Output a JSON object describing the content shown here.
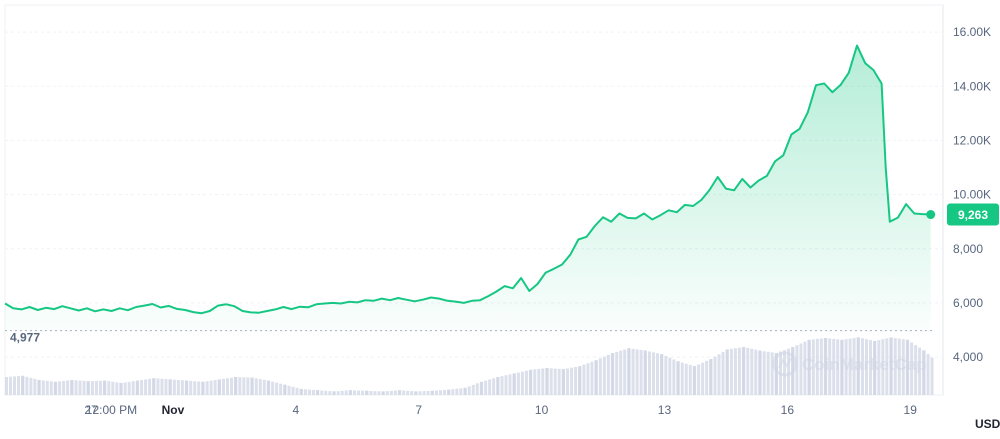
{
  "chart_data": {
    "type": "area",
    "ylim": [
      2600,
      17000
    ],
    "y_ticks": [
      {
        "value": 16000,
        "label": "16.00K"
      },
      {
        "value": 14000,
        "label": "14.00K"
      },
      {
        "value": 12000,
        "label": "12.00K"
      },
      {
        "value": 10000,
        "label": "10.00K"
      },
      {
        "value": 8000,
        "label": "8,000"
      },
      {
        "value": 6000,
        "label": "6,000"
      },
      {
        "value": 4000,
        "label": "4,000"
      }
    ],
    "x_ticks": [
      {
        "value": 27.0,
        "label": "27",
        "bold": false
      },
      {
        "value": 27.5,
        "label": "12:00 PM",
        "bold": false
      },
      {
        "value": 29.0,
        "label": "Nov",
        "bold": true
      },
      {
        "value": 32.0,
        "label": "4",
        "bold": false
      },
      {
        "value": 35.0,
        "label": "7",
        "bold": false
      },
      {
        "value": 38.0,
        "label": "10",
        "bold": false
      },
      {
        "value": 41.0,
        "label": "13",
        "bold": false
      },
      {
        "value": 44.0,
        "label": "16",
        "bold": false
      },
      {
        "value": 47.0,
        "label": "19",
        "bold": false
      }
    ],
    "xlim": [
      24.9,
      47.8
    ],
    "currency_label": "USD",
    "current_value_label": "9,263",
    "baseline_value": 4977,
    "baseline_label": "4,977",
    "watermark": "CoinMarketCap",
    "colors": {
      "line": "#16c784",
      "fill": "#16c784",
      "grid": "#eff2f5",
      "text": "#58667e",
      "volume": "#cfd6e4"
    },
    "series": [
      {
        "values": [
          [
            24.9,
            5980
          ],
          [
            25.1,
            5800
          ],
          [
            25.3,
            5760
          ],
          [
            25.5,
            5850
          ],
          [
            25.7,
            5740
          ],
          [
            25.9,
            5820
          ],
          [
            26.1,
            5770
          ],
          [
            26.3,
            5880
          ],
          [
            26.5,
            5800
          ],
          [
            26.7,
            5720
          ],
          [
            26.9,
            5800
          ],
          [
            27.1,
            5690
          ],
          [
            27.3,
            5760
          ],
          [
            27.5,
            5700
          ],
          [
            27.7,
            5800
          ],
          [
            27.9,
            5730
          ],
          [
            28.1,
            5850
          ],
          [
            28.3,
            5900
          ],
          [
            28.5,
            5960
          ],
          [
            28.7,
            5830
          ],
          [
            28.9,
            5890
          ],
          [
            29.1,
            5780
          ],
          [
            29.3,
            5740
          ],
          [
            29.5,
            5660
          ],
          [
            29.7,
            5620
          ],
          [
            29.9,
            5700
          ],
          [
            30.1,
            5900
          ],
          [
            30.3,
            5950
          ],
          [
            30.5,
            5880
          ],
          [
            30.7,
            5700
          ],
          [
            30.9,
            5650
          ],
          [
            31.1,
            5640
          ],
          [
            31.3,
            5700
          ],
          [
            31.5,
            5760
          ],
          [
            31.7,
            5850
          ],
          [
            31.9,
            5770
          ],
          [
            32.1,
            5860
          ],
          [
            32.3,
            5840
          ],
          [
            32.5,
            5950
          ],
          [
            32.7,
            5980
          ],
          [
            32.9,
            6000
          ],
          [
            33.1,
            5980
          ],
          [
            33.3,
            6040
          ],
          [
            33.5,
            6020
          ],
          [
            33.7,
            6100
          ],
          [
            33.9,
            6080
          ],
          [
            34.1,
            6160
          ],
          [
            34.3,
            6100
          ],
          [
            34.5,
            6180
          ],
          [
            34.7,
            6120
          ],
          [
            34.9,
            6060
          ],
          [
            35.1,
            6120
          ],
          [
            35.3,
            6200
          ],
          [
            35.5,
            6160
          ],
          [
            35.7,
            6080
          ],
          [
            35.9,
            6050
          ],
          [
            36.1,
            6000
          ],
          [
            36.3,
            6080
          ],
          [
            36.5,
            6100
          ],
          [
            36.7,
            6250
          ],
          [
            36.9,
            6420
          ],
          [
            37.1,
            6620
          ],
          [
            37.3,
            6540
          ],
          [
            37.5,
            6920
          ],
          [
            37.7,
            6440
          ],
          [
            37.9,
            6700
          ],
          [
            38.1,
            7120
          ],
          [
            38.3,
            7260
          ],
          [
            38.5,
            7420
          ],
          [
            38.7,
            7780
          ],
          [
            38.9,
            8340
          ],
          [
            39.1,
            8440
          ],
          [
            39.3,
            8840
          ],
          [
            39.5,
            9160
          ],
          [
            39.7,
            9000
          ],
          [
            39.9,
            9300
          ],
          [
            40.1,
            9140
          ],
          [
            40.3,
            9120
          ],
          [
            40.5,
            9300
          ],
          [
            40.7,
            9080
          ],
          [
            40.9,
            9240
          ],
          [
            41.1,
            9420
          ],
          [
            41.3,
            9350
          ],
          [
            41.5,
            9620
          ],
          [
            41.7,
            9580
          ],
          [
            41.9,
            9800
          ],
          [
            42.1,
            10170
          ],
          [
            42.3,
            10650
          ],
          [
            42.5,
            10220
          ],
          [
            42.7,
            10160
          ],
          [
            42.9,
            10580
          ],
          [
            43.1,
            10260
          ],
          [
            43.3,
            10520
          ],
          [
            43.5,
            10690
          ],
          [
            43.7,
            11230
          ],
          [
            43.9,
            11450
          ],
          [
            44.1,
            12220
          ],
          [
            44.3,
            12430
          ],
          [
            44.5,
            13040
          ],
          [
            44.7,
            14040
          ],
          [
            44.9,
            14100
          ],
          [
            45.1,
            13780
          ],
          [
            45.3,
            14050
          ],
          [
            45.5,
            14500
          ],
          [
            45.7,
            15500
          ],
          [
            45.9,
            14850
          ],
          [
            46.1,
            14600
          ],
          [
            46.3,
            14100
          ],
          [
            46.4,
            11000
          ],
          [
            46.5,
            9000
          ],
          [
            46.7,
            9150
          ],
          [
            46.9,
            9650
          ],
          [
            47.1,
            9300
          ],
          [
            47.3,
            9280
          ],
          [
            47.5,
            9263
          ]
        ]
      }
    ],
    "volume": [
      [
        24.9,
        0.3
      ],
      [
        25.3,
        0.32
      ],
      [
        25.7,
        0.25
      ],
      [
        26.1,
        0.22
      ],
      [
        26.5,
        0.25
      ],
      [
        26.9,
        0.23
      ],
      [
        27.3,
        0.24
      ],
      [
        27.7,
        0.2
      ],
      [
        28.1,
        0.24
      ],
      [
        28.5,
        0.28
      ],
      [
        28.9,
        0.26
      ],
      [
        29.3,
        0.24
      ],
      [
        29.7,
        0.22
      ],
      [
        30.1,
        0.26
      ],
      [
        30.5,
        0.3
      ],
      [
        30.9,
        0.29
      ],
      [
        31.3,
        0.24
      ],
      [
        31.7,
        0.17
      ],
      [
        32.1,
        0.1
      ],
      [
        32.5,
        0.08
      ],
      [
        32.9,
        0.06
      ],
      [
        33.3,
        0.08
      ],
      [
        33.7,
        0.07
      ],
      [
        34.1,
        0.06
      ],
      [
        34.5,
        0.08
      ],
      [
        34.9,
        0.06
      ],
      [
        35.3,
        0.07
      ],
      [
        35.7,
        0.09
      ],
      [
        36.1,
        0.12
      ],
      [
        36.5,
        0.22
      ],
      [
        36.9,
        0.3
      ],
      [
        37.3,
        0.36
      ],
      [
        37.7,
        0.42
      ],
      [
        38.1,
        0.45
      ],
      [
        38.5,
        0.43
      ],
      [
        38.9,
        0.48
      ],
      [
        39.3,
        0.58
      ],
      [
        39.7,
        0.7
      ],
      [
        40.1,
        0.78
      ],
      [
        40.5,
        0.74
      ],
      [
        40.9,
        0.68
      ],
      [
        41.3,
        0.56
      ],
      [
        41.7,
        0.48
      ],
      [
        42.1,
        0.6
      ],
      [
        42.5,
        0.76
      ],
      [
        42.9,
        0.8
      ],
      [
        43.3,
        0.74
      ],
      [
        43.7,
        0.7
      ],
      [
        44.1,
        0.8
      ],
      [
        44.5,
        0.92
      ],
      [
        44.9,
        0.95
      ],
      [
        45.3,
        0.92
      ],
      [
        45.7,
        0.96
      ],
      [
        46.1,
        0.9
      ],
      [
        46.5,
        0.96
      ],
      [
        46.9,
        0.92
      ],
      [
        47.3,
        0.74
      ],
      [
        47.5,
        0.62
      ]
    ]
  }
}
